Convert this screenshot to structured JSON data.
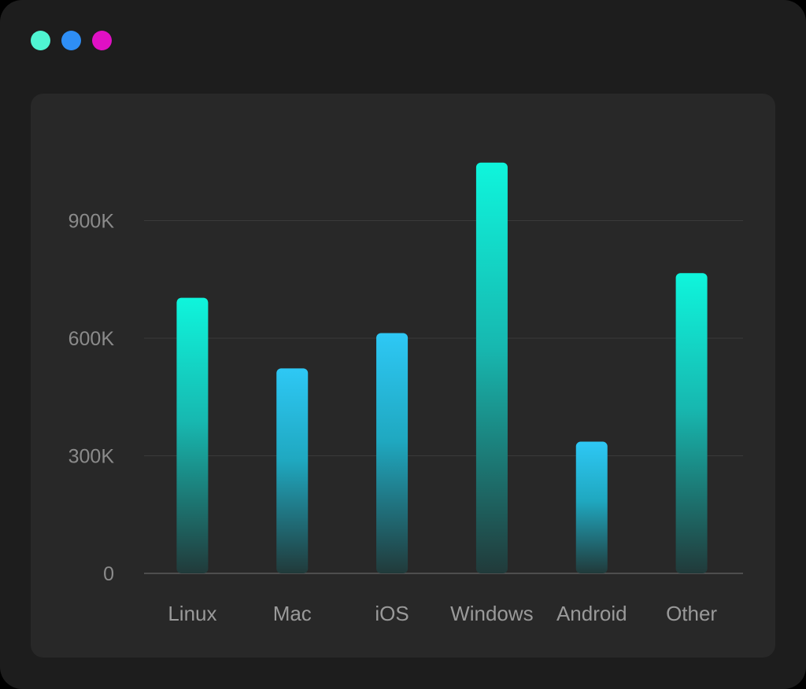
{
  "window": {
    "controls": [
      {
        "name": "green-dot",
        "color": "#4ff5d2"
      },
      {
        "name": "blue-dot",
        "color": "#2e8ef5"
      },
      {
        "name": "magenta-dot",
        "color": "#e010c4"
      }
    ]
  },
  "chart_data": {
    "type": "bar",
    "categories": [
      "Linux",
      "Mac",
      "iOS",
      "Windows",
      "Android",
      "Other"
    ],
    "values": [
      703000,
      523000,
      613000,
      1048000,
      336000,
      766000
    ],
    "yticks": [
      0,
      300000,
      600000,
      900000
    ],
    "ytick_labels": [
      "0",
      "300K",
      "600K",
      "900K"
    ],
    "ylim": [
      0,
      1100000
    ],
    "grid": true,
    "legend": "none",
    "colors": {
      "gradient_top_tall": "#0ff5dc",
      "gradient_top_short": "#2ec8f5",
      "gradient_bottom": "#213a3a",
      "gridline": "#3a3a3a",
      "baseline": "#5a5a5a"
    }
  }
}
